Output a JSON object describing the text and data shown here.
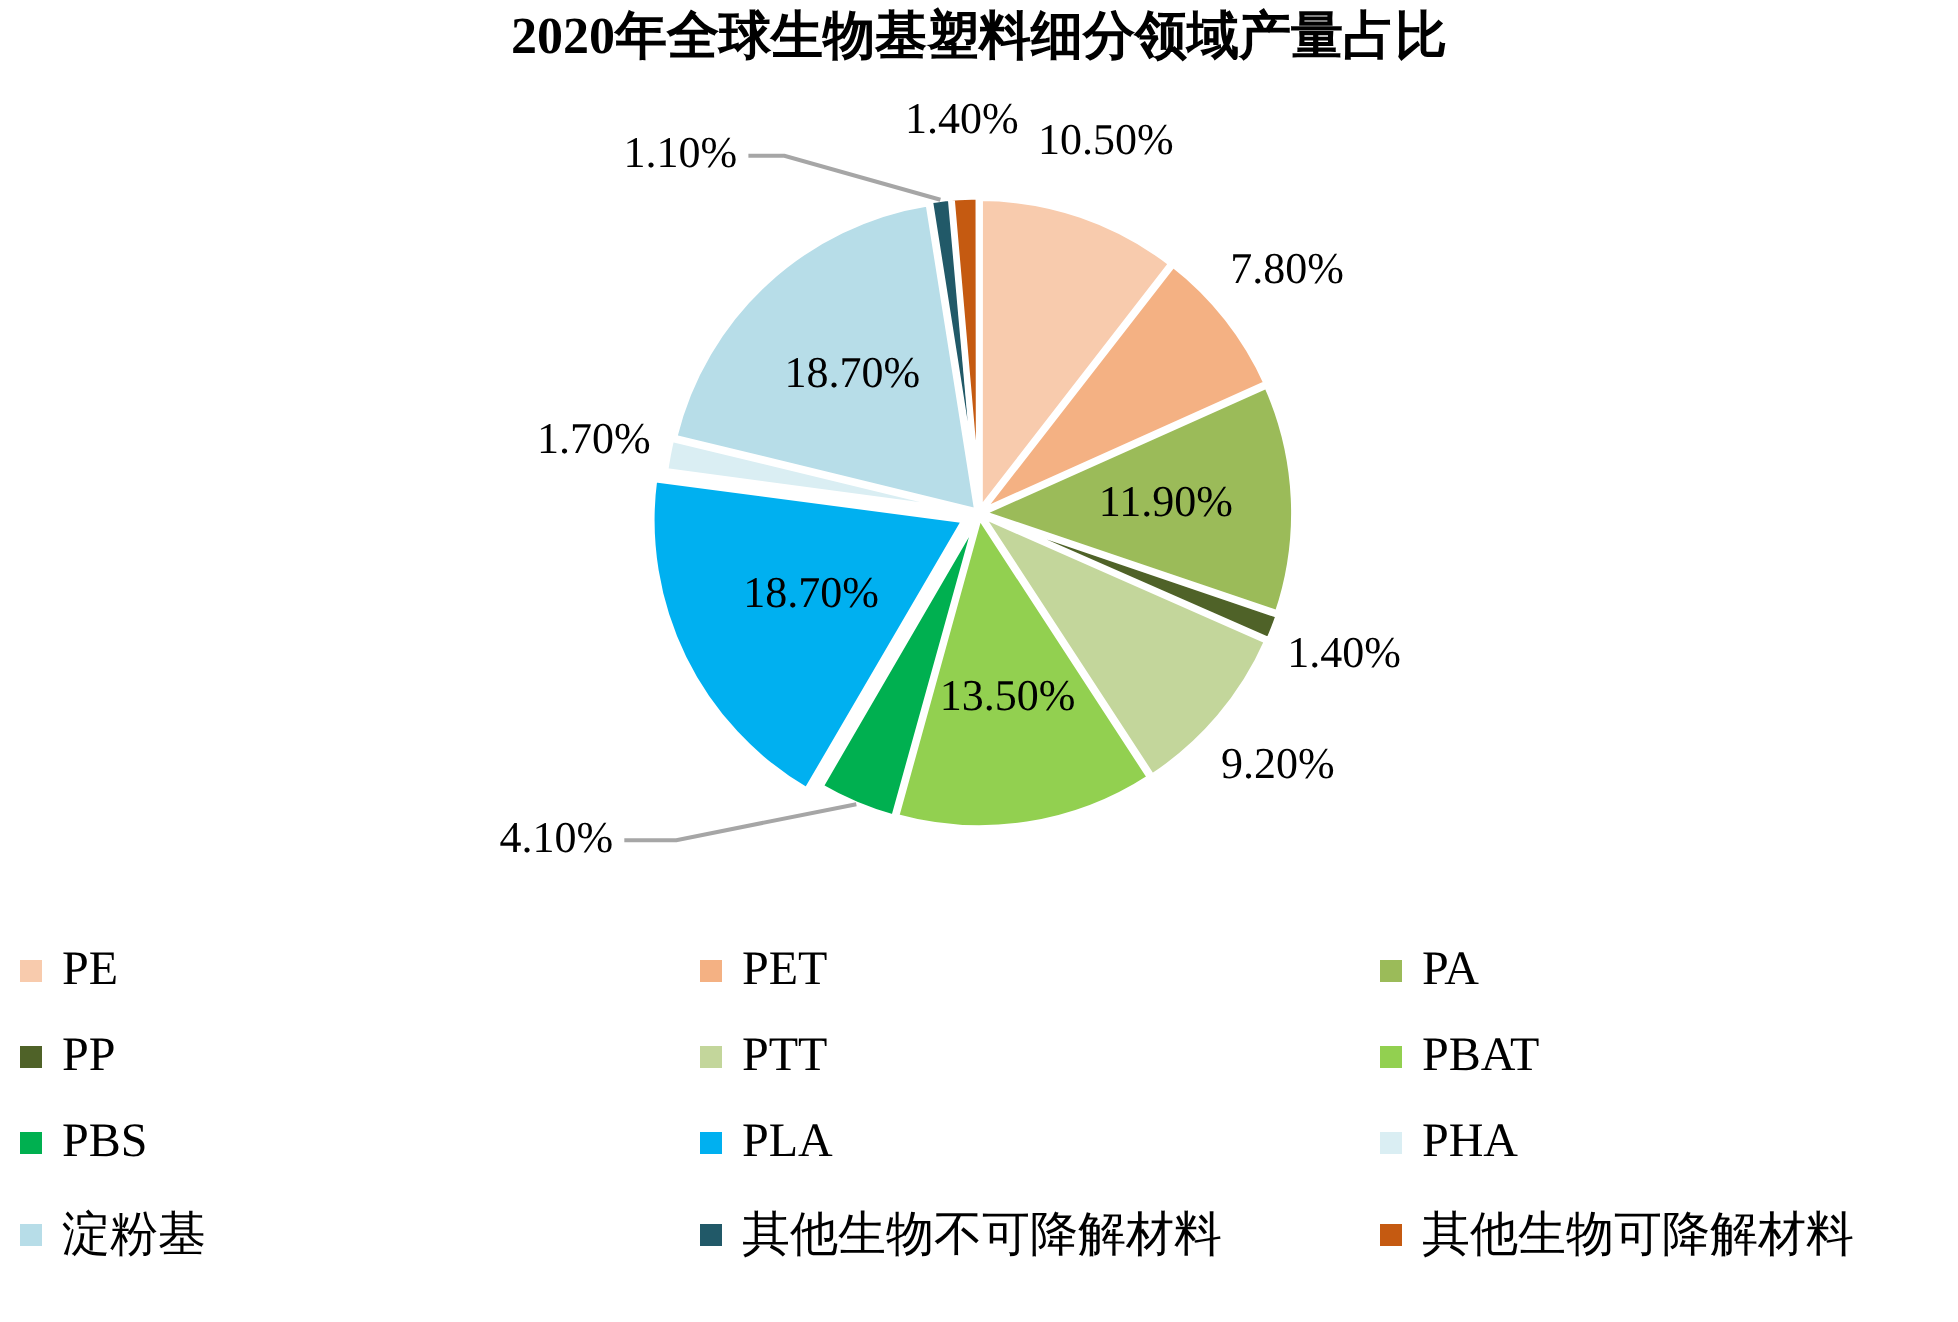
{
  "chart_data": {
    "type": "pie",
    "title": "2020年全球生物基塑料细分领域产量占比",
    "categories": [
      "PE",
      "PET",
      "PA",
      "PP",
      "PTT",
      "PBAT",
      "PBS",
      "PLA",
      "PHA",
      "淀粉基",
      "其他生物不可降解材料",
      "其他生物可降解材料"
    ],
    "values": [
      10.5,
      7.8,
      11.9,
      1.4,
      9.2,
      13.5,
      4.1,
      18.7,
      1.7,
      18.7,
      1.1,
      1.4
    ],
    "value_labels": [
      "10.50%",
      "7.80%",
      "11.90%",
      "1.40%",
      "9.20%",
      "13.50%",
      "4.10%",
      "18.70%",
      "1.70%",
      "18.70%",
      "1.10%",
      "1.40%"
    ],
    "colors": [
      "#f8cbad",
      "#f4b183",
      "#9bbb59",
      "#4f6228",
      "#c3d69b",
      "#92d050",
      "#00b050",
      "#00b0f0",
      "#daeef3",
      "#b7dde8",
      "#215968",
      "#c55a11"
    ],
    "legend": "bottom"
  }
}
